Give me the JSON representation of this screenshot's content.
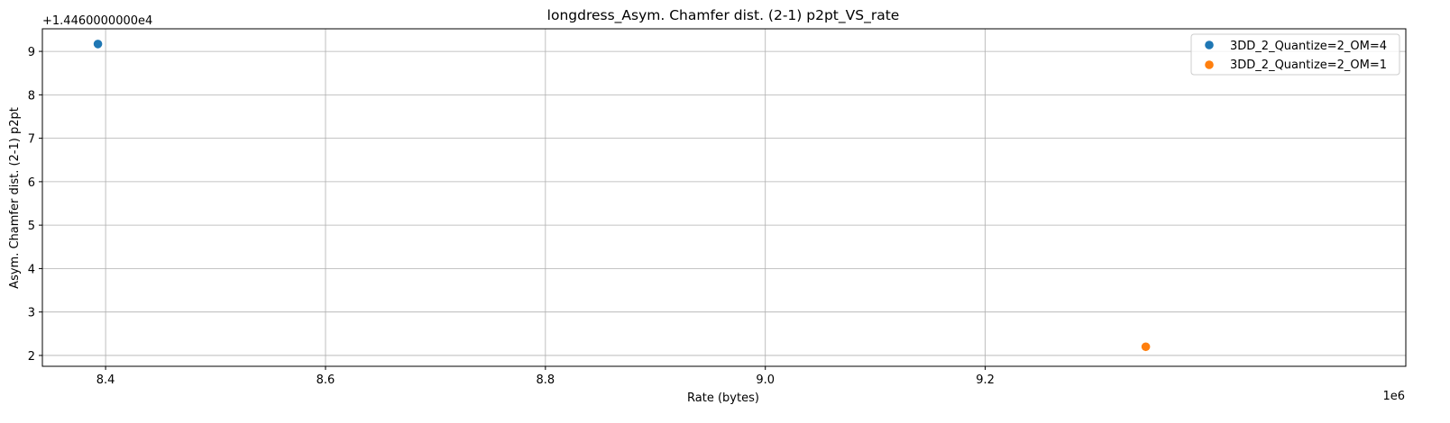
{
  "chart_data": {
    "type": "scatter",
    "title": "longdress_Asym. Chamfer dist. (2-1) p2pt_VS_rate",
    "xlabel": "Rate (bytes)",
    "ylabel": "Asym. Chamfer dist. (2-1) p2pt",
    "x_offset_label": "1e6",
    "y_offset_label": "+1.4460000000e4",
    "xlim": [
      8.3425,
      9.5825
    ],
    "ylim": [
      1.75,
      9.52
    ],
    "x_ticks": [
      8.4,
      8.6,
      8.8,
      9.0,
      9.2
    ],
    "x_tick_labels": [
      "8.4",
      "8.6",
      "8.8",
      "9.0",
      "9.2"
    ],
    "y_ticks": [
      2,
      3,
      4,
      5,
      6,
      7,
      8,
      9
    ],
    "y_tick_labels": [
      "2",
      "3",
      "4",
      "5",
      "6",
      "7",
      "8",
      "9"
    ],
    "grid": true,
    "legend_position": "top-right",
    "series": [
      {
        "name": "3DD_2_Quantize=2_OM=4",
        "color": "#1f77b4",
        "points": [
          {
            "x": 8.393,
            "y": 9.17
          }
        ]
      },
      {
        "name": "3DD_2_Quantize=2_OM=1",
        "color": "#ff7f0e",
        "points": [
          {
            "x": 9.346,
            "y": 2.2
          }
        ]
      }
    ]
  }
}
